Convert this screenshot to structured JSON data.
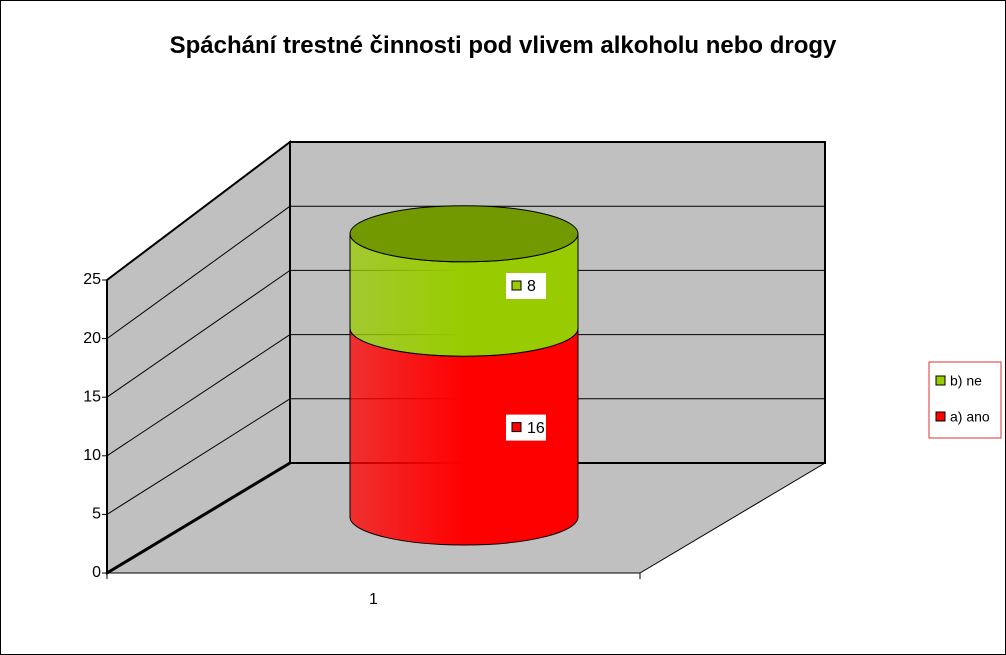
{
  "chart_data": {
    "type": "cylinder3d-stacked",
    "title": "Spáchání trestné činnosti pod vlivem alkoholu nebo drogy",
    "categories": [
      "1"
    ],
    "series": [
      {
        "name": "a) ano",
        "color": "#ff0000",
        "values": [
          16
        ]
      },
      {
        "name": "b) ne",
        "color": "#99cc00",
        "values": [
          8
        ]
      }
    ],
    "ylim": [
      0,
      25
    ],
    "yticks": [
      0,
      5,
      10,
      15,
      20,
      25
    ],
    "grid": true,
    "legend": "right"
  }
}
